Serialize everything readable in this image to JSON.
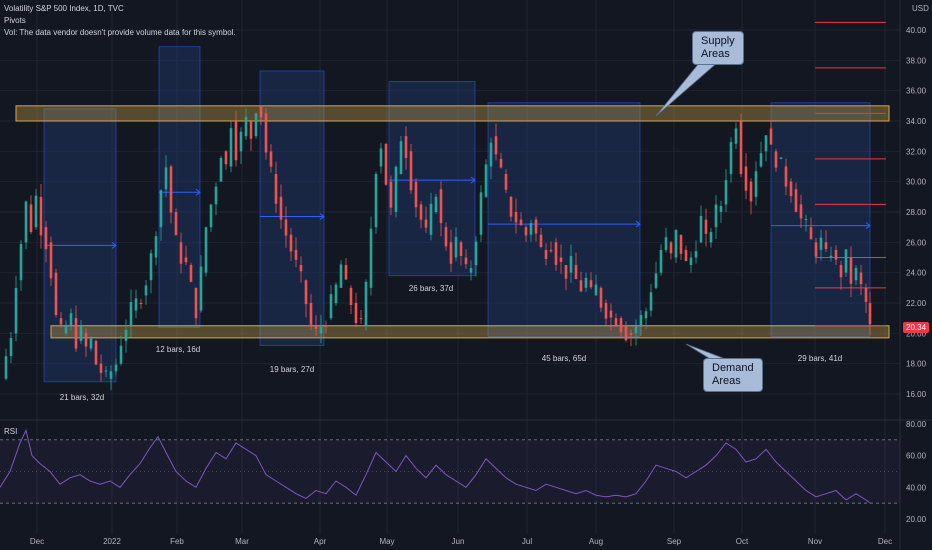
{
  "header": {
    "title": "Volatility S&P 500 Index, 1D, TVC",
    "pivots_label": "Pivots",
    "volume_note": "Vol: The data vendor doesn't provide volume data for this symbol."
  },
  "currency": "USD",
  "last_price": "20.34",
  "callouts": {
    "supply": "Supply\nAreas",
    "demand": "Demand\nAreas"
  },
  "rsi_label": "RSI",
  "colors": {
    "background": "#131722",
    "up": "#26a69a",
    "down": "#ef5350",
    "zone": "#1e3a6e",
    "supply_demand": "#d4a84b",
    "rsi": "#7e57c2",
    "pivot": "#f23645"
  },
  "chart_data": [
    {
      "type": "candlestick",
      "title": "Volatility S&P 500 Index, 1D, TVC",
      "x_ticks": [
        "Dec",
        "2022",
        "Feb",
        "Mar",
        "Apr",
        "May",
        "Jun",
        "Jul",
        "Aug",
        "Sep",
        "Oct",
        "Nov",
        "Dec"
      ],
      "y_ticks": [
        16.0,
        18.0,
        20.0,
        22.0,
        24.0,
        26.0,
        28.0,
        30.0,
        32.0,
        34.0,
        36.0,
        38.0,
        40.0
      ],
      "ylim": [
        15.0,
        41.5
      ],
      "series_close_path": [
        [
          0,
          17.0
        ],
        [
          6,
          18.5
        ],
        [
          11,
          20.0
        ],
        [
          16,
          23.5
        ],
        [
          21,
          26.0
        ],
        [
          26,
          28.5
        ],
        [
          31,
          27.0
        ],
        [
          36,
          29.0
        ],
        [
          41,
          27.0
        ],
        [
          46,
          26.0
        ],
        [
          51,
          24.0
        ],
        [
          56,
          21.0
        ],
        [
          61,
          20.0
        ],
        [
          66,
          20.5
        ],
        [
          71,
          21.0
        ],
        [
          76,
          19.5
        ],
        [
          81,
          20.0
        ],
        [
          86,
          19.0
        ],
        [
          91,
          19.5
        ],
        [
          96,
          18.0
        ],
        [
          101,
          17.5
        ],
        [
          106,
          17.0
        ],
        [
          111,
          17.5
        ],
        [
          116,
          18.0
        ],
        [
          121,
          19.5
        ],
        [
          126,
          20.5
        ],
        [
          131,
          21.5
        ],
        [
          136,
          22.0
        ],
        [
          141,
          22.5
        ],
        [
          146,
          23.5
        ],
        [
          151,
          25.0
        ],
        [
          156,
          27.0
        ],
        [
          161,
          29.5
        ],
        [
          166,
          31.0
        ],
        [
          171,
          28.0
        ],
        [
          176,
          26.0
        ],
        [
          181,
          25.0
        ],
        [
          186,
          24.5
        ],
        [
          191,
          23.0
        ],
        [
          196,
          21.5
        ],
        [
          201,
          24.0
        ],
        [
          206,
          27.0
        ],
        [
          211,
          28.5
        ],
        [
          216,
          30.0
        ],
        [
          221,
          32.0
        ],
        [
          226,
          31.0
        ],
        [
          231,
          34.0
        ],
        [
          236,
          32.0
        ],
        [
          241,
          33.0
        ],
        [
          246,
          34.0
        ],
        [
          251,
          33.0
        ],
        [
          256,
          35.0
        ],
        [
          261,
          34.5
        ],
        [
          266,
          32.0
        ],
        [
          271,
          30.5
        ],
        [
          276,
          29.0
        ],
        [
          281,
          27.5
        ],
        [
          286,
          26.5
        ],
        [
          291,
          25.5
        ],
        [
          296,
          24.5
        ],
        [
          301,
          23.5
        ],
        [
          306,
          22.0
        ],
        [
          311,
          20.5
        ],
        [
          316,
          20.0
        ],
        [
          321,
          20.5
        ],
        [
          326,
          21.0
        ],
        [
          331,
          22.0
        ],
        [
          336,
          23.0
        ],
        [
          341,
          24.5
        ],
        [
          346,
          23.0
        ],
        [
          351,
          22.0
        ],
        [
          356,
          21.0
        ],
        [
          361,
          20.5
        ],
        [
          366,
          23.0
        ],
        [
          371,
          27.0
        ],
        [
          376,
          31.0
        ],
        [
          381,
          32.5
        ],
        [
          386,
          30.0
        ],
        [
          391,
          28.0
        ],
        [
          396,
          30.5
        ],
        [
          401,
          33.0
        ],
        [
          406,
          32.0
        ],
        [
          411,
          30.0
        ],
        [
          416,
          28.5
        ],
        [
          421,
          27.5
        ],
        [
          426,
          26.5
        ],
        [
          431,
          28.0
        ],
        [
          436,
          29.5
        ],
        [
          441,
          27.0
        ],
        [
          446,
          26.0
        ],
        [
          451,
          25.0
        ],
        [
          456,
          26.0
        ],
        [
          461,
          25.0
        ],
        [
          466,
          24.0
        ],
        [
          471,
          24.5
        ],
        [
          476,
          26.5
        ],
        [
          481,
          29.0
        ],
        [
          486,
          31.0
        ],
        [
          491,
          33.0
        ],
        [
          496,
          31.5
        ],
        [
          501,
          30.5
        ],
        [
          506,
          29.0
        ],
        [
          511,
          28.0
        ],
        [
          516,
          27.5
        ],
        [
          521,
          27.0
        ],
        [
          526,
          26.5
        ],
        [
          531,
          27.5
        ],
        [
          536,
          26.5
        ],
        [
          541,
          25.5
        ],
        [
          546,
          25.5
        ],
        [
          551,
          26.0
        ],
        [
          556,
          25.0
        ],
        [
          561,
          24.5
        ],
        [
          566,
          24.0
        ],
        [
          571,
          24.5
        ],
        [
          576,
          23.5
        ],
        [
          581,
          23.0
        ],
        [
          586,
          23.5
        ],
        [
          591,
          22.5
        ],
        [
          596,
          23.0
        ],
        [
          601,
          22.0
        ],
        [
          606,
          21.5
        ],
        [
          611,
          21.0
        ],
        [
          616,
          21.0
        ],
        [
          621,
          20.5
        ],
        [
          626,
          20.0
        ],
        [
          631,
          20.0
        ],
        [
          636,
          20.5
        ],
        [
          641,
          21.0
        ],
        [
          646,
          21.5
        ],
        [
          651,
          23.0
        ],
        [
          656,
          24.0
        ],
        [
          661,
          25.5
        ],
        [
          666,
          26.0
        ],
        [
          671,
          25.0
        ],
        [
          676,
          26.5
        ],
        [
          681,
          25.5
        ],
        [
          686,
          24.5
        ],
        [
          691,
          25.0
        ],
        [
          696,
          26.0
        ],
        [
          701,
          27.5
        ],
        [
          706,
          26.0
        ],
        [
          711,
          27.0
        ],
        [
          716,
          28.0
        ],
        [
          721,
          28.5
        ],
        [
          726,
          30.5
        ],
        [
          731,
          32.5
        ],
        [
          736,
          34.0
        ],
        [
          741,
          31.0
        ],
        [
          746,
          30.0
        ],
        [
          751,
          29.0
        ],
        [
          756,
          31.0
        ],
        [
          761,
          32.0
        ],
        [
          766,
          33.5
        ],
        [
          771,
          32.0
        ],
        [
          776,
          31.5
        ],
        [
          781,
          31.0
        ],
        [
          786,
          30.0
        ],
        [
          791,
          29.5
        ],
        [
          796,
          28.5
        ],
        [
          801,
          27.5
        ],
        [
          806,
          27.0
        ],
        [
          811,
          26.0
        ],
        [
          816,
          25.5
        ],
        [
          821,
          26.0
        ],
        [
          826,
          25.0
        ],
        [
          831,
          25.5
        ],
        [
          836,
          24.5
        ],
        [
          841,
          24.0
        ],
        [
          846,
          25.0
        ],
        [
          851,
          23.5
        ],
        [
          856,
          24.0
        ],
        [
          861,
          23.0
        ],
        [
          866,
          22.0
        ],
        [
          870,
          20.3
        ]
      ],
      "supply_zone": [
        34.0,
        35.0
      ],
      "demand_zone": [
        19.7,
        20.5
      ],
      "pivot_levels": [
        40.5,
        37.5,
        34.5,
        31.5,
        28.5,
        25.0,
        23.0,
        20.5
      ],
      "annotations": [
        {
          "label": "21 bars, 32d",
          "y_low": 16.8,
          "y_high": 34.8,
          "mid": 25.8
        },
        {
          "label": "12 bars, 16d",
          "y_low": 20.4,
          "y_high": 38.9,
          "mid": 29.3
        },
        {
          "label": "19 bars, 27d",
          "y_low": 19.2,
          "y_high": 37.3,
          "mid": 27.7
        },
        {
          "label": "26 bars, 37d",
          "y_low": 23.8,
          "y_high": 36.6,
          "mid": 30.1
        },
        {
          "label": "45 bars, 65d",
          "y_low": 19.8,
          "y_high": 35.2,
          "mid": 27.2
        },
        {
          "label": "29 bars, 41d",
          "y_low": 19.8,
          "y_high": 35.2,
          "mid": 27.1
        }
      ]
    },
    {
      "type": "line",
      "title": "RSI",
      "y_ticks": [
        20.0,
        40.0,
        60.0,
        80.0
      ],
      "ylim": [
        16,
        84
      ],
      "band": [
        30,
        70
      ],
      "values": [
        [
          0,
          40
        ],
        [
          10,
          50
        ],
        [
          20,
          68
        ],
        [
          26,
          76
        ],
        [
          32,
          60
        ],
        [
          40,
          55
        ],
        [
          50,
          50
        ],
        [
          60,
          42
        ],
        [
          70,
          46
        ],
        [
          80,
          48
        ],
        [
          90,
          44
        ],
        [
          100,
          42
        ],
        [
          110,
          44
        ],
        [
          120,
          40
        ],
        [
          130,
          48
        ],
        [
          140,
          55
        ],
        [
          150,
          65
        ],
        [
          158,
          72
        ],
        [
          166,
          62
        ],
        [
          176,
          50
        ],
        [
          186,
          44
        ],
        [
          196,
          40
        ],
        [
          206,
          52
        ],
        [
          216,
          62
        ],
        [
          226,
          58
        ],
        [
          236,
          68
        ],
        [
          246,
          64
        ],
        [
          256,
          60
        ],
        [
          266,
          48
        ],
        [
          276,
          44
        ],
        [
          286,
          40
        ],
        [
          296,
          36
        ],
        [
          306,
          33
        ],
        [
          316,
          38
        ],
        [
          326,
          36
        ],
        [
          336,
          44
        ],
        [
          346,
          40
        ],
        [
          356,
          35
        ],
        [
          366,
          48
        ],
        [
          376,
          62
        ],
        [
          386,
          56
        ],
        [
          396,
          50
        ],
        [
          406,
          60
        ],
        [
          416,
          52
        ],
        [
          426,
          46
        ],
        [
          436,
          54
        ],
        [
          446,
          48
        ],
        [
          456,
          44
        ],
        [
          466,
          40
        ],
        [
          476,
          48
        ],
        [
          486,
          58
        ],
        [
          496,
          52
        ],
        [
          506,
          46
        ],
        [
          516,
          42
        ],
        [
          526,
          40
        ],
        [
          536,
          38
        ],
        [
          546,
          42
        ],
        [
          556,
          40
        ],
        [
          566,
          38
        ],
        [
          576,
          36
        ],
        [
          586,
          38
        ],
        [
          596,
          35
        ],
        [
          606,
          34
        ],
        [
          616,
          35
        ],
        [
          626,
          34
        ],
        [
          636,
          36
        ],
        [
          646,
          44
        ],
        [
          656,
          54
        ],
        [
          666,
          52
        ],
        [
          676,
          50
        ],
        [
          686,
          46
        ],
        [
          696,
          50
        ],
        [
          706,
          54
        ],
        [
          716,
          60
        ],
        [
          726,
          68
        ],
        [
          736,
          64
        ],
        [
          746,
          56
        ],
        [
          756,
          58
        ],
        [
          766,
          64
        ],
        [
          776,
          56
        ],
        [
          786,
          50
        ],
        [
          796,
          44
        ],
        [
          806,
          38
        ],
        [
          816,
          34
        ],
        [
          826,
          36
        ],
        [
          836,
          38
        ],
        [
          846,
          32
        ],
        [
          856,
          36
        ],
        [
          866,
          32
        ],
        [
          870,
          30
        ]
      ]
    }
  ]
}
